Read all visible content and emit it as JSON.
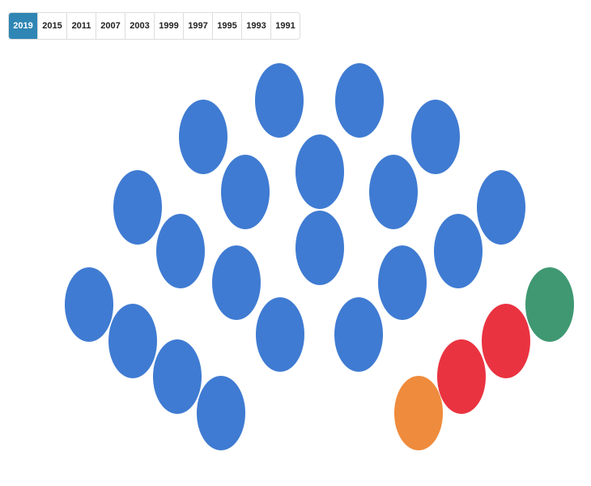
{
  "tabs": {
    "items": [
      "2019",
      "2015",
      "2011",
      "2007",
      "2003",
      "1999",
      "1997",
      "1995",
      "1993",
      "1991"
    ],
    "selected": 0
  },
  "chart_data": {
    "type": "parliament",
    "series": [
      {
        "color": "#3f7bd2",
        "values": [
          20
        ]
      },
      {
        "color": "#ef8b3c",
        "values": [
          1
        ]
      },
      {
        "color": "#ea3340",
        "values": [
          2
        ]
      },
      {
        "color": "#3f9872",
        "values": [
          1
        ]
      }
    ]
  }
}
